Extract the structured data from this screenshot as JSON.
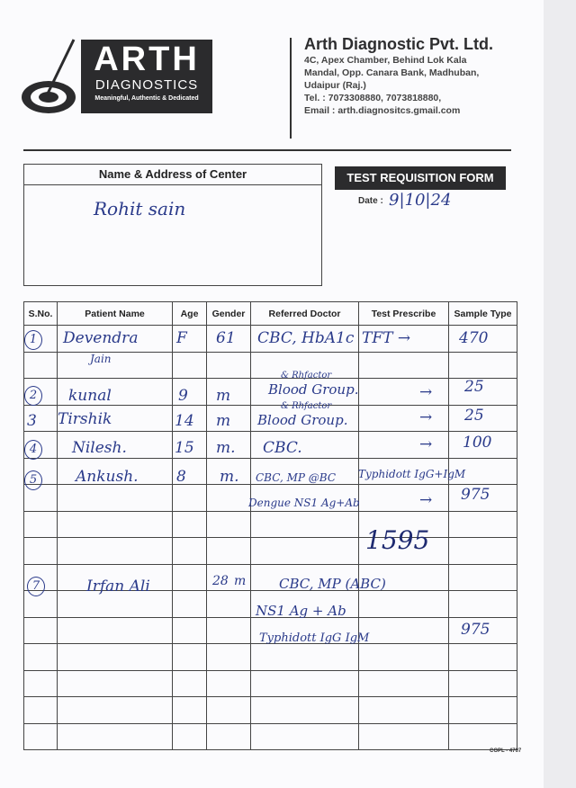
{
  "logo": {
    "brand": "ARTH",
    "sub": "DIAGNOSTICS",
    "tagline": "Meaningful, Authentic & Dedicated"
  },
  "company": {
    "name": "Arth Diagnostic Pvt. Ltd.",
    "address1": "4C, Apex Chamber, Behind Lok Kala",
    "address2": "Mandal, Opp. Canara Bank, Madhuban,",
    "address3": "Udaipur (Raj.)",
    "tel": "Tel. : 7073308880, 7073818880,",
    "email": "Email : arth.diagnositcs.gmail.com"
  },
  "center": {
    "label": "Name & Address of Center",
    "value": "Rohit sain"
  },
  "form": {
    "title": "TEST REQUISITION FORM",
    "date_label": "Date :",
    "date_value": "9|10|24"
  },
  "table": {
    "headers": [
      "S.No.",
      "Patient Name",
      "Age",
      "Gender",
      "Referred Doctor",
      "Test Prescribe",
      "Sample Type"
    ]
  },
  "entries": [
    {
      "sno": "1",
      "name": "Devendra",
      "name2": "Jain",
      "col3": "F",
      "col4": "61",
      "tests": "CBC, HbA1c",
      "test2": "TFT →",
      "amount": "470"
    },
    {
      "sno": "2",
      "name": "kunal",
      "col3": "9",
      "col4": "m",
      "tests_note": "& Rhfactor",
      "tests": "Blood Group.",
      "arrow": "→",
      "amount": "25"
    },
    {
      "sno": "3",
      "name": "Tirshik",
      "col3": "14",
      "col4": "m",
      "tests_note": "& Rhfactor",
      "tests": "Blood Group.",
      "arrow": "→",
      "amount": "25"
    },
    {
      "sno": "4",
      "name": "Nilesh.",
      "col3": "15",
      "col4": "m.",
      "tests": "CBC.",
      "arrow": "→",
      "amount": "100"
    },
    {
      "sno": "5",
      "name": "Ankush.",
      "col3": "8",
      "col4": "m.",
      "tests": "CBC, MP @BC",
      "test2": "Typhidott IgG+IgM",
      "tests3": "Dengue NS1 Ag+Ab",
      "arrow": "→",
      "amount": "975"
    },
    {
      "sno": "7",
      "name": "Irfan Ali",
      "col3": "28",
      "col4": "m",
      "tests": "CBC, MP (ABC)",
      "tests2": "NS1 Ag + Ab",
      "tests3": "Typhidott IgG IgM",
      "amount": "975"
    }
  ],
  "subtotal": "1595",
  "form_code": "COPL - 4707"
}
